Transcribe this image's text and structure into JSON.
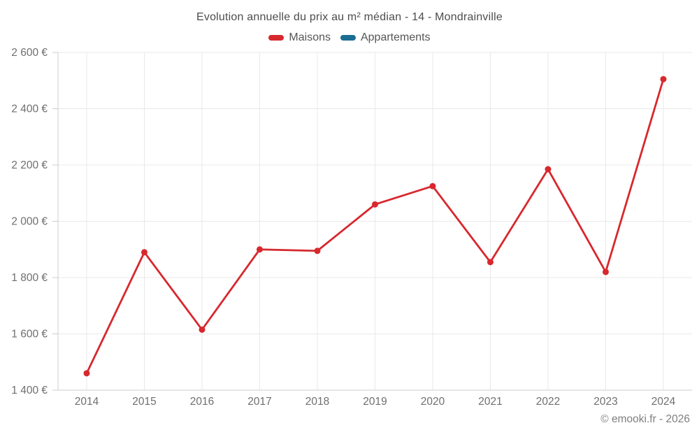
{
  "footer": {
    "copyright": "© emooki.fr - 2026"
  },
  "chart_data": {
    "type": "line",
    "title": "Evolution annuelle du prix au m² médian - 14 - Mondrainville",
    "categories": [
      "2014",
      "2015",
      "2016",
      "2017",
      "2018",
      "2019",
      "2020",
      "2021",
      "2022",
      "2023",
      "2024"
    ],
    "series": [
      {
        "name": "Maisons",
        "color": "#d7282e",
        "values": [
          1460,
          1890,
          1615,
          1900,
          1895,
          2060,
          2125,
          1855,
          2185,
          1820,
          2505
        ]
      },
      {
        "name": "Appartements",
        "color": "#1b6d93",
        "values": []
      }
    ],
    "xlabel": "",
    "ylabel": "",
    "ylim": [
      1400,
      2600
    ],
    "y_ticks": [
      {
        "value": 1400,
        "label": "1 400 €"
      },
      {
        "value": 1600,
        "label": "1 600 €"
      },
      {
        "value": 1800,
        "label": "1 800 €"
      },
      {
        "value": 2000,
        "label": "2 000 €"
      },
      {
        "value": 2200,
        "label": "2 200 €"
      },
      {
        "value": 2400,
        "label": "2 400 €"
      },
      {
        "value": 2600,
        "label": "2 600 €"
      }
    ],
    "grid": true,
    "legend_position": "top",
    "currency": "€"
  }
}
